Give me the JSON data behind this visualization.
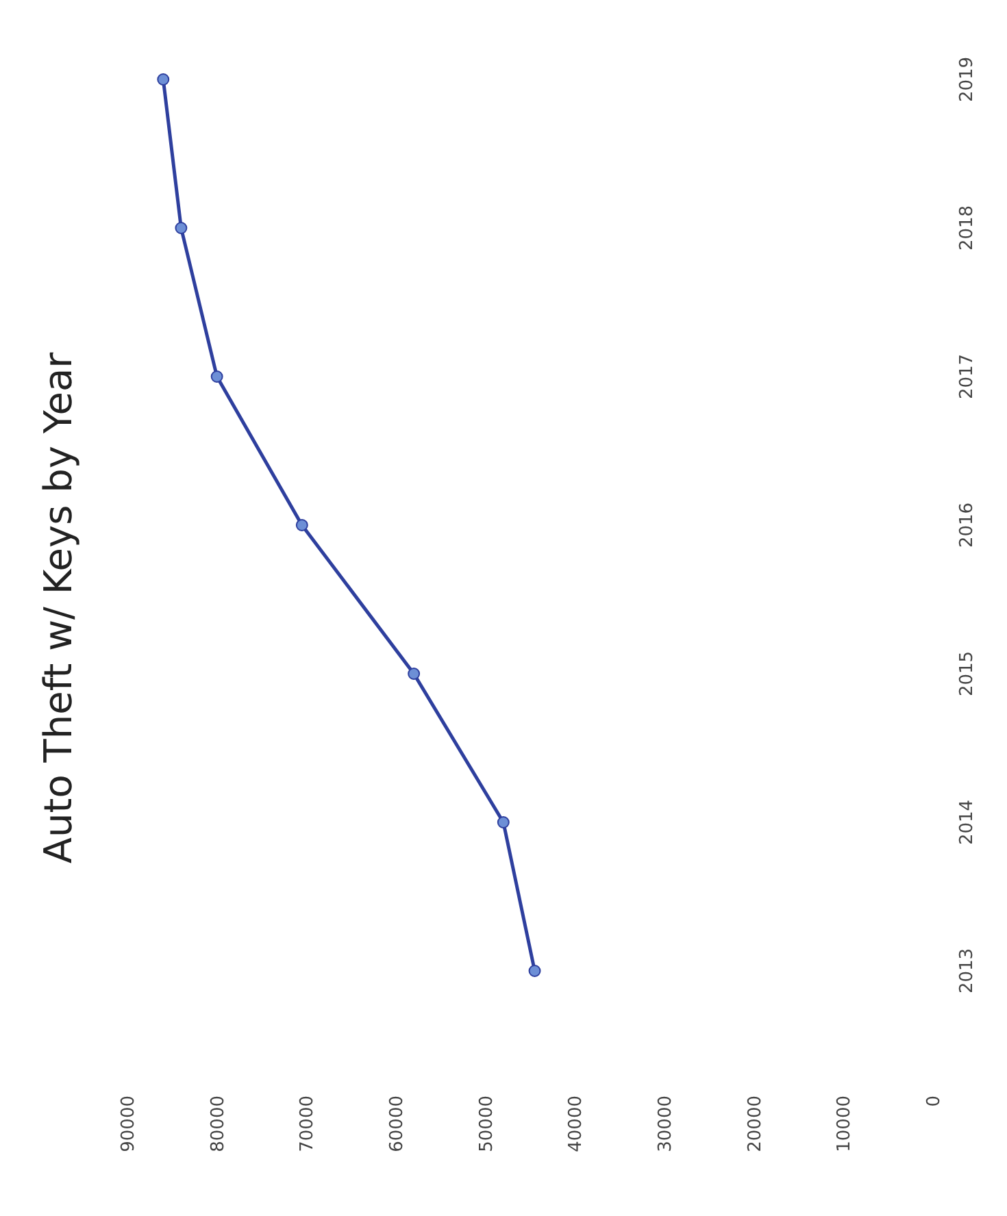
{
  "chart_data": {
    "type": "line",
    "orientation": "horizontal",
    "title": "Auto Theft w/ Keys by Year",
    "categories": [
      "2019",
      "2018",
      "2017",
      "2016",
      "2015",
      "2014",
      "2013"
    ],
    "series": [
      {
        "color": "#2e3f9e",
        "values": [
          86000,
          84000,
          80000,
          70500,
          58000,
          48000,
          44500
        ]
      }
    ],
    "xlim": [
      90000,
      0
    ],
    "xticks": [
      90000,
      80000,
      70000,
      60000,
      50000,
      40000,
      30000,
      20000,
      10000,
      0
    ],
    "marker": "circle"
  }
}
